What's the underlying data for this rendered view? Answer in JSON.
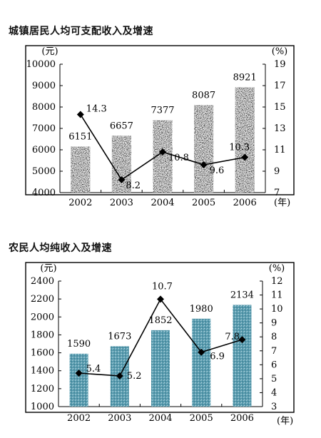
{
  "chart_data": [
    {
      "type": "bar",
      "title": "城镇居民人均可支配收入及增速",
      "categories": [
        "2002",
        "2003",
        "2004",
        "2005",
        "2006"
      ],
      "series": [
        {
          "values": [
            6151,
            6657,
            7377,
            8087,
            8921
          ]
        },
        {
          "type": "line",
          "axis": "right",
          "values": [
            14.3,
            8.2,
            10.8,
            9.6,
            10.3
          ]
        }
      ],
      "ylim": [
        4000,
        10000
      ],
      "yticks": [
        "4000",
        "5000",
        "6000",
        "7000",
        "8000",
        "9000",
        "10000"
      ],
      "y2lim": [
        7,
        19
      ],
      "y2ticks": [
        "7",
        "9",
        "11",
        "13",
        "15",
        "17",
        "19"
      ],
      "ylabel": "(元)",
      "y2label": "(%)",
      "xlabel": "(年)",
      "bar_color": "#000000",
      "bar_style": "solid",
      "grid": false
    },
    {
      "type": "bar",
      "title": "农民人均纯收入及增速",
      "categories": [
        "2002",
        "2003",
        "2004",
        "2005",
        "2006"
      ],
      "series": [
        {
          "values": [
            1590,
            1673,
            1852,
            1980,
            2134
          ]
        },
        {
          "type": "line",
          "axis": "right",
          "values": [
            5.4,
            5.2,
            10.7,
            6.9,
            7.8
          ]
        }
      ],
      "ylim": [
        1000,
        2400
      ],
      "yticks": [
        "1000",
        "1200",
        "1400",
        "1600",
        "1800",
        "2000",
        "2200",
        "2400"
      ],
      "y2lim": [
        3,
        12
      ],
      "y2ticks": [
        "3",
        "4",
        "5",
        "6",
        "7",
        "8",
        "9",
        "10",
        "11",
        "12"
      ],
      "ylabel": "(元)",
      "y2label": "(%)",
      "xlabel": "(年)",
      "bar_color": "#4a8fa3",
      "bar_style": "textured",
      "grid": false
    }
  ]
}
